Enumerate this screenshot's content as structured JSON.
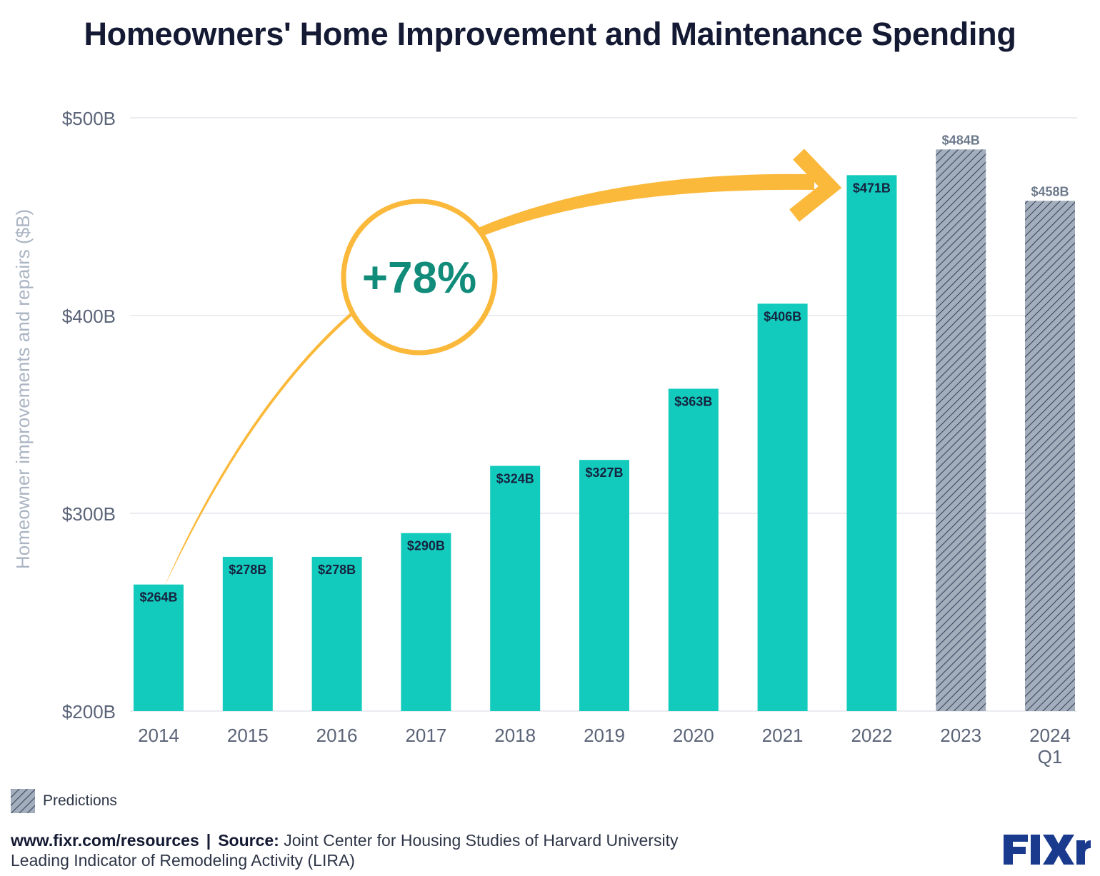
{
  "title": "Homeowners' Home Improvement and Maintenance Spending",
  "chart_data": {
    "type": "bar",
    "title": "Homeowners' Home Improvement and Maintenance Spending",
    "ylabel": "Homeowner improvements and repairs ($B)",
    "xlabel": "",
    "ylim": [
      200,
      500
    ],
    "yticks": [
      {
        "value": 200,
        "label": "$200B"
      },
      {
        "value": 300,
        "label": "$300B"
      },
      {
        "value": 400,
        "label": "$400B"
      },
      {
        "value": 500,
        "label": "$500B"
      }
    ],
    "grid": true,
    "bars": [
      {
        "category": "2014",
        "value": 264,
        "label": "$264B",
        "predicted": false
      },
      {
        "category": "2015",
        "value": 278,
        "label": "$278B",
        "predicted": false
      },
      {
        "category": "2016",
        "value": 278,
        "label": "$278B",
        "predicted": false
      },
      {
        "category": "2017",
        "value": 290,
        "label": "$290B",
        "predicted": false
      },
      {
        "category": "2018",
        "value": 324,
        "label": "$324B",
        "predicted": false
      },
      {
        "category": "2019",
        "value": 327,
        "label": "$327B",
        "predicted": false
      },
      {
        "category": "2020",
        "value": 363,
        "label": "$363B",
        "predicted": false
      },
      {
        "category": "2021",
        "value": 406,
        "label": "$406B",
        "predicted": false
      },
      {
        "category": "2022",
        "value": 471,
        "label": "$471B",
        "predicted": false
      },
      {
        "category": "2023",
        "value": 484,
        "label": "$484B",
        "predicted": true
      },
      {
        "category": "2024\nQ1",
        "value": 458,
        "label": "$458B",
        "predicted": true
      }
    ],
    "annotation": {
      "text": "+78%",
      "from": "2014",
      "to": "2022"
    },
    "legend": [
      {
        "label": "Predictions",
        "pattern": "hatched",
        "placement": "bottom-left"
      }
    ],
    "colors": {
      "actual": "#12cbbd",
      "predicted": "#a3aebd",
      "hatch": "#39465c",
      "arrow": "#fbb93b",
      "annotation_text": "#118c7a",
      "bar_label": "#17233f",
      "predicted_label": "#6d7a8c",
      "grid": "#dde1e8",
      "axis_text": "#5b6478"
    }
  },
  "legend": {
    "label": "Predictions"
  },
  "footer": {
    "url": "www.fixr.com/resources",
    "separator": "|",
    "source_label": "Source:",
    "source_line1": "Joint Center for Housing Studies of Harvard University",
    "source_line2": "Leading Indicator of Remodeling Activity (LIRA)"
  },
  "logo": {
    "text": "FIXr",
    "color": "#1a3a8e"
  }
}
